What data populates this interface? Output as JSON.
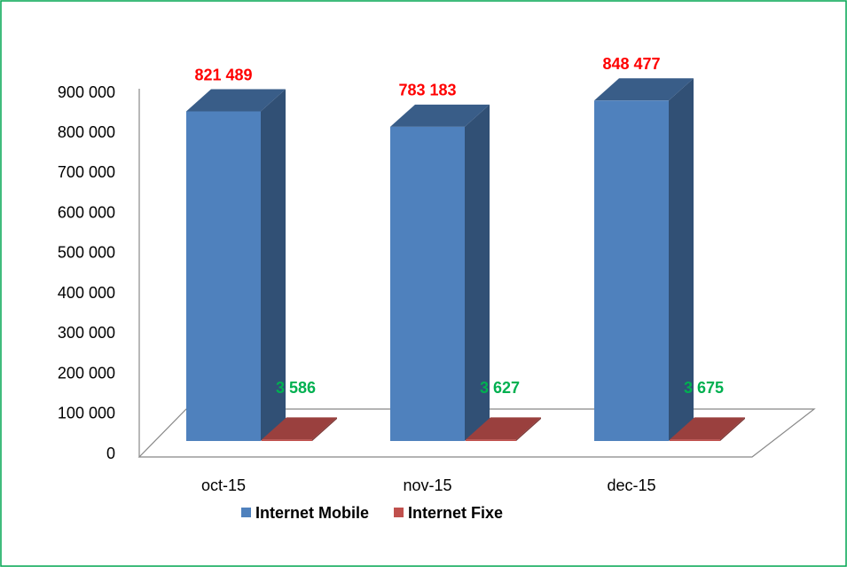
{
  "chart_data": {
    "type": "bar3d",
    "categories": [
      "oct-15",
      "nov-15",
      "dec-15"
    ],
    "series": [
      {
        "name": "Internet Mobile",
        "color": "#4f81bd",
        "label_color": "#ff0000",
        "values": [
          821489,
          783183,
          848477
        ],
        "value_labels": [
          "821 489",
          "783 183",
          "848 477"
        ]
      },
      {
        "name": "Internet Fixe",
        "color": "#c0504d",
        "label_color": "#00b050",
        "values": [
          3586,
          3627,
          3675
        ],
        "value_labels": [
          "3 586",
          "3 627",
          "3 675"
        ]
      }
    ],
    "ylim": [
      0,
      900000
    ],
    "yticks": [
      0,
      {
        "value": 100000,
        "label": "100 000"
      },
      {
        "value": 200000,
        "label": "200 000"
      },
      {
        "value": 300000,
        "label": "300 000"
      },
      {
        "value": 400000,
        "label": "400 000"
      },
      {
        "value": 500000,
        "label": "500 000"
      },
      {
        "value": 600000,
        "label": "600 000"
      },
      {
        "value": 700000,
        "label": "700 000"
      },
      {
        "value": 800000,
        "label": "800 000"
      },
      {
        "value": 900000,
        "label": "900 000"
      }
    ],
    "legend": "bottom"
  }
}
